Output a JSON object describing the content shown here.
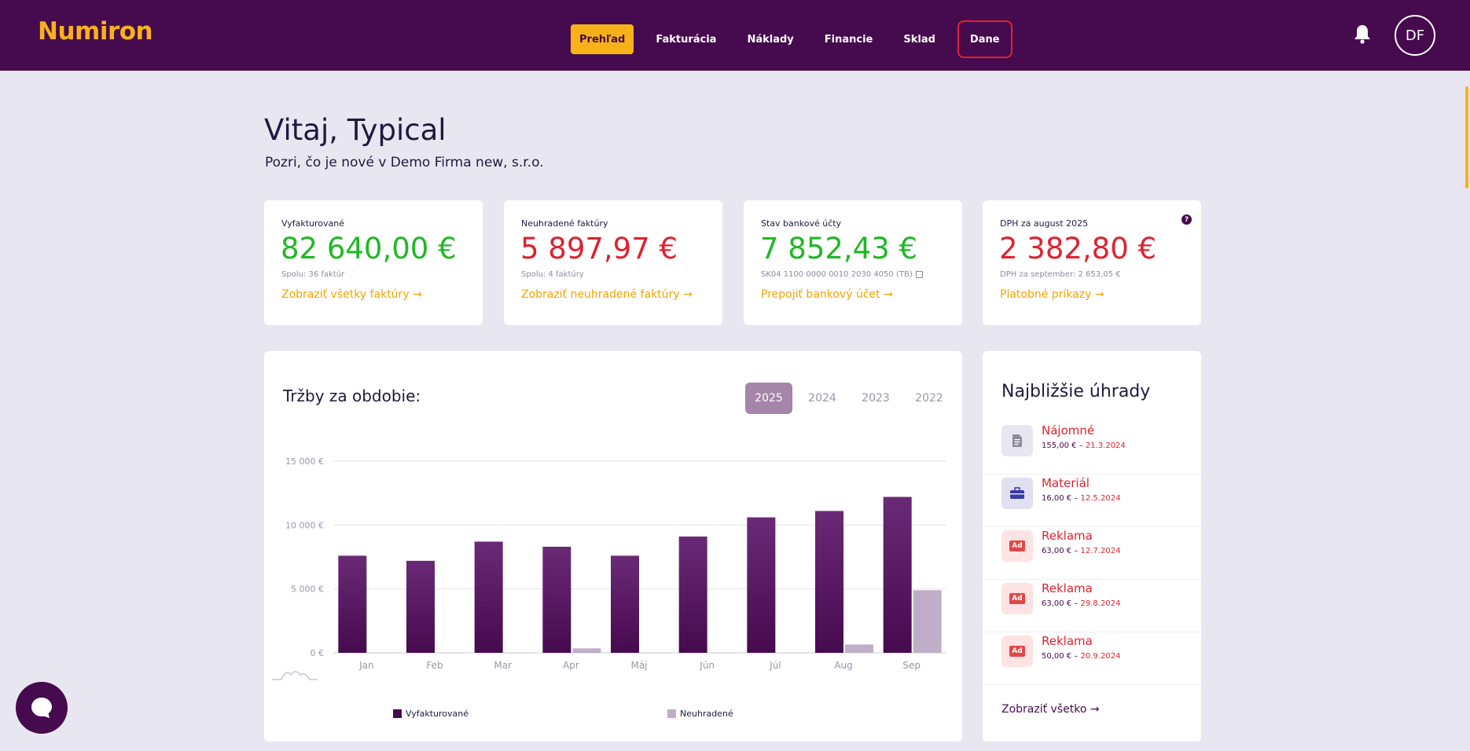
{
  "header": {
    "logo": "Numiron",
    "nav": [
      {
        "label": "Prehľad"
      },
      {
        "label": "Fakturácia"
      },
      {
        "label": "Náklady"
      },
      {
        "label": "Financie"
      },
      {
        "label": "Sklad"
      },
      {
        "label": "Dane"
      }
    ],
    "avatar_initials": "DF"
  },
  "welcome": {
    "title": "Vitaj, Typical",
    "subtitle": "Pozri, čo je nové v Demo Firma new, s.r.o."
  },
  "cards": [
    {
      "label": "Vyfakturované",
      "amount": "82 640,00 €",
      "note": "Spolu: 36 faktúr",
      "link": "Zobraziť všetky faktúry →"
    },
    {
      "label": "Neuhradené faktúry",
      "amount": "5 897,97 €",
      "note": "Spolu: 4 faktúry",
      "link": "Zobraziť neuhradené faktúry →"
    },
    {
      "label": "Stav bankové účty",
      "amount": "7 852,43 €",
      "note": "SK04 1100 0000 0010 2030 4050 (TB)",
      "link": "Prepojiť bankový účet →"
    },
    {
      "label": "DPH za august 2025",
      "amount": "2 382,80 €",
      "note": "DPH za september: 2 653,05 €",
      "link": "Platobné príkazy →"
    }
  ],
  "chart_panel": {
    "title": "Tržby za obdobie:",
    "years": [
      "2025",
      "2024",
      "2023",
      "2022"
    ],
    "active_year": "2025"
  },
  "chart_data": {
    "type": "bar",
    "categories": [
      "Jan",
      "Feb",
      "Mar",
      "Apr",
      "Máj",
      "Jún",
      "Júl",
      "Aug",
      "Sep"
    ],
    "series": [
      {
        "name": "Vyfakturované",
        "color": "#5a1a66",
        "values": [
          7600,
          7200,
          8700,
          8300,
          7600,
          9100,
          10600,
          11100,
          12200
        ]
      },
      {
        "name": "Neuhradené",
        "color": "#c0aec8",
        "values": [
          0,
          0,
          0,
          350,
          0,
          0,
          0,
          650,
          4900
        ]
      }
    ],
    "yticks": [
      "0 €",
      "5 000 €",
      "10 000 €",
      "15 000 €"
    ],
    "ylim": [
      0,
      15000
    ],
    "grid": true,
    "legend_position": "bottom"
  },
  "payments": {
    "title": "Najbližšie úhrady",
    "items": [
      {
        "name": "Nájomné",
        "amount": "155,00 €",
        "date": "21.3.2024",
        "icon": "document-icon"
      },
      {
        "name": "Materiál",
        "amount": "16,00 €",
        "date": "12.5.2024",
        "icon": "toolbox-icon"
      },
      {
        "name": "Reklama",
        "amount": "63,00 €",
        "date": "12.7.2024",
        "icon": "ad-icon"
      },
      {
        "name": "Reklama",
        "amount": "63,00 €",
        "date": "29.8.2024",
        "icon": "ad-icon"
      },
      {
        "name": "Reklama",
        "amount": "50,00 €",
        "date": "20.9.2024",
        "icon": "ad-icon"
      }
    ],
    "show_all": "Zobraziť všetko →",
    "sep": " – "
  },
  "icons": {
    "ad_badge": "Ad",
    "help": "?"
  }
}
